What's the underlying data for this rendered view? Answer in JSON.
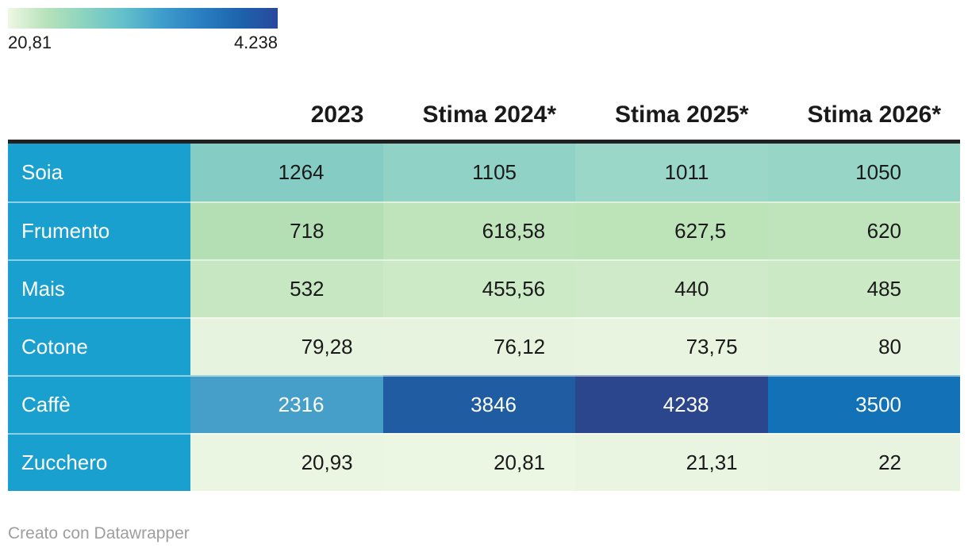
{
  "legend": {
    "min_label": "20,81",
    "max_label": "4.238",
    "gradient_stops": [
      "#edf8e4",
      "#b7e2ba",
      "#8ad3c0",
      "#63c0cb",
      "#3f9dcc",
      "#2a7fc1",
      "#1d64ad",
      "#29489c"
    ]
  },
  "colors": {
    "row_header_bg": "#19a0ce",
    "top_border": "#212121",
    "header_text": "#1a1a1a",
    "footer_text": "#9e9e9e"
  },
  "table": {
    "columns": [
      "2023",
      "Stima 2024*",
      "Stima 2025*",
      "Stima 2026*"
    ],
    "rows": [
      {
        "label": "Soia",
        "cells": [
          {
            "text": "1264",
            "bg": "#85CDC4",
            "fg": "#1a1a1a"
          },
          {
            "text": "1105",
            "bg": "#90D2C6",
            "fg": "#1a1a1a"
          },
          {
            "text": "1011",
            "bg": "#9BD7C8",
            "fg": "#1a1a1a"
          },
          {
            "text": "1050",
            "bg": "#97D5C6",
            "fg": "#1a1a1a"
          }
        ]
      },
      {
        "label": "Frumento",
        "cells": [
          {
            "text": "718",
            "bg": "#B4DFB5",
            "fg": "#1a1a1a"
          },
          {
            "text": "618,58",
            "bg": "#BFE4BB",
            "fg": "#1a1a1a"
          },
          {
            "text": "627,5",
            "bg": "#BDE3B9",
            "fg": "#1a1a1a"
          },
          {
            "text": "620",
            "bg": "#BFE4BB",
            "fg": "#1a1a1a"
          }
        ]
      },
      {
        "label": "Mais",
        "cells": [
          {
            "text": "532",
            "bg": "#C7E7C2",
            "fg": "#1a1a1a"
          },
          {
            "text": "455,56",
            "bg": "#CDEAC7",
            "fg": "#1a1a1a"
          },
          {
            "text": "440",
            "bg": "#CFEAC9",
            "fg": "#1a1a1a"
          },
          {
            "text": "485",
            "bg": "#CBE9C5",
            "fg": "#1a1a1a"
          }
        ]
      },
      {
        "label": "Cotone",
        "cells": [
          {
            "text": "79,28",
            "bg": "#E6F3DE",
            "fg": "#1a1a1a"
          },
          {
            "text": "76,12",
            "bg": "#E7F3DF",
            "fg": "#1a1a1a"
          },
          {
            "text": "73,75",
            "bg": "#E8F4E0",
            "fg": "#1a1a1a"
          },
          {
            "text": "80",
            "bg": "#E6F3DE",
            "fg": "#1a1a1a"
          }
        ]
      },
      {
        "label": "Caffè",
        "cells": [
          {
            "text": "2316",
            "bg": "#459FC9",
            "fg": "#ffffff"
          },
          {
            "text": "3846",
            "bg": "#1F5CA1",
            "fg": "#ffffff"
          },
          {
            "text": "4238",
            "bg": "#2B468C",
            "fg": "#ffffff"
          },
          {
            "text": "3500",
            "bg": "#1372B7",
            "fg": "#ffffff"
          }
        ]
      },
      {
        "label": "Zucchero",
        "cells": [
          {
            "text": "20,93",
            "bg": "#EAF5E2",
            "fg": "#1a1a1a"
          },
          {
            "text": "20,81",
            "bg": "#EBF6E3",
            "fg": "#1a1a1a"
          },
          {
            "text": "21,31",
            "bg": "#EAF5E1",
            "fg": "#1a1a1a"
          },
          {
            "text": "22",
            "bg": "#E9F4E0",
            "fg": "#1a1a1a"
          }
        ]
      }
    ]
  },
  "footer": {
    "text": "Creato con Datawrapper"
  },
  "chart_data": {
    "type": "heatmap",
    "categories": [
      "2023",
      "Stima 2024*",
      "Stima 2025*",
      "Stima 2026*"
    ],
    "rows": [
      "Soia",
      "Frumento",
      "Mais",
      "Cotone",
      "Caffè",
      "Zucchero"
    ],
    "series": [
      {
        "name": "Soia",
        "values": [
          1264,
          1105,
          1011,
          1050
        ]
      },
      {
        "name": "Frumento",
        "values": [
          718,
          618.58,
          627.5,
          620
        ]
      },
      {
        "name": "Mais",
        "values": [
          532,
          455.56,
          440,
          485
        ]
      },
      {
        "name": "Cotone",
        "values": [
          79.28,
          76.12,
          73.75,
          80
        ]
      },
      {
        "name": "Caffè",
        "values": [
          2316,
          3846,
          4238,
          3500
        ]
      },
      {
        "name": "Zucchero",
        "values": [
          20.93,
          20.81,
          21.31,
          22
        ]
      }
    ],
    "color_scale": {
      "min": 20.81,
      "max": 4238,
      "min_label": "20,81",
      "max_label": "4.238"
    },
    "legend_position": "top-left",
    "title": "",
    "grid": false
  }
}
